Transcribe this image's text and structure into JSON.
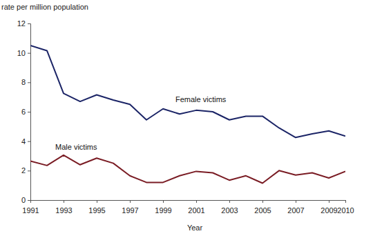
{
  "chart_data": {
    "type": "line",
    "y_label": "rate per million population",
    "x_label": "Year",
    "x": [
      1991,
      1992,
      1993,
      1994,
      1995,
      1996,
      1997,
      1998,
      1999,
      2000,
      2001,
      2002,
      2003,
      2004,
      2005,
      2006,
      2007,
      2008,
      2009,
      2010
    ],
    "series": [
      {
        "name": "Female victims",
        "color": "#1b2466",
        "values": [
          10.5,
          10.15,
          7.25,
          6.7,
          7.15,
          6.8,
          6.5,
          5.45,
          6.2,
          5.85,
          6.1,
          6.0,
          5.45,
          5.7,
          5.7,
          4.9,
          4.25,
          4.5,
          4.7,
          4.35
        ]
      },
      {
        "name": "Male victims",
        "color": "#7a1c24",
        "values": [
          2.65,
          2.35,
          3.05,
          2.4,
          2.85,
          2.5,
          1.65,
          1.2,
          1.2,
          1.65,
          1.95,
          1.85,
          1.35,
          1.65,
          1.15,
          2.0,
          1.7,
          1.85,
          1.5,
          1.95
        ]
      }
    ],
    "xlim": [
      1991,
      2010
    ],
    "xticks": [
      1991,
      1993,
      1995,
      1997,
      1999,
      2001,
      2003,
      2005,
      2007,
      2009,
      2010
    ],
    "ylim": [
      0,
      12
    ],
    "yticks": [
      0,
      2,
      4,
      6,
      8,
      10,
      12
    ],
    "grid": false
  }
}
